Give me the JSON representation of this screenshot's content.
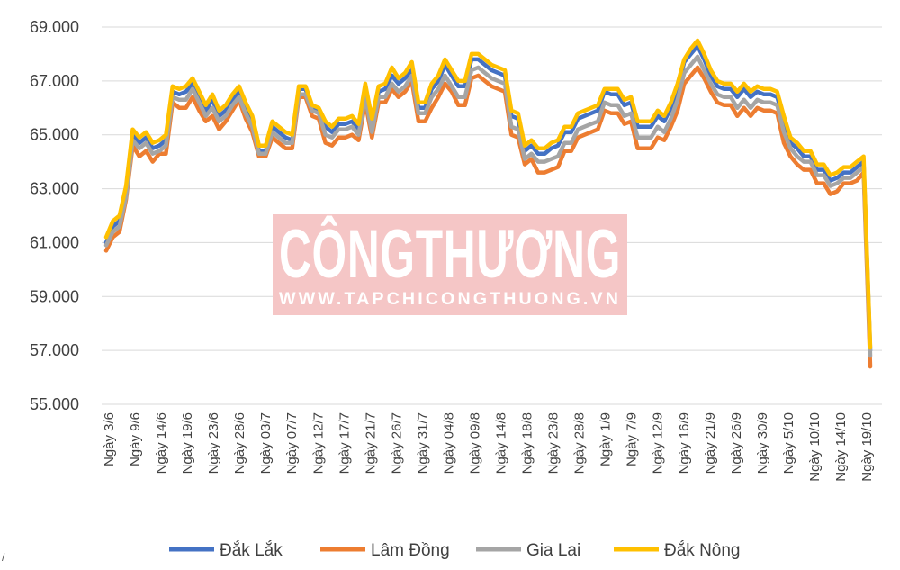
{
  "chart_data": {
    "type": "line",
    "y_ticks": [
      "55.000",
      "57.000",
      "59.000",
      "61.000",
      "63.000",
      "65.000",
      "67.000",
      "69.000"
    ],
    "ylim": [
      55000,
      69000
    ],
    "grid": true,
    "legend_position": "bottom",
    "x_labels": [
      "Ngày 3/6",
      "Ngày 9/6",
      "Ngày 14/6",
      "Ngày 19/6",
      "Ngày 23/6",
      "Ngày 28/6",
      "Ngày 03/7",
      "Ngày 07/7",
      "Ngày 12/7",
      "Ngày 17/7",
      "Ngày 21/7",
      "Ngày 26/7",
      "Ngày 31/7",
      "Ngày 04/8",
      "Ngày 09/8",
      "Ngày 14/8",
      "Ngày 18/8",
      "Ngày 23/8",
      "Ngày 28/8",
      "Ngày 1/9",
      "Ngày 7/9",
      "Ngày 12/9",
      "Ngày 16/9",
      "Ngày 21/9",
      "Ngày 26/9",
      "Ngày 30/9",
      "Ngày 5/10",
      "Ngày 10/10",
      "Ngày 14/10",
      "Ngày 19/10"
    ],
    "series": [
      {
        "name": "Đắk Lắk",
        "color": "#4472C4",
        "values": [
          61000,
          61600,
          61800,
          62900,
          65000,
          64700,
          64900,
          64500,
          64600,
          64800,
          66600,
          66500,
          66600,
          66900,
          66400,
          65900,
          66300,
          65700,
          65900,
          66300,
          66600,
          66000,
          65500,
          64400,
          64400,
          65300,
          65100,
          64900,
          64800,
          66700,
          66700,
          66000,
          65900,
          65300,
          65100,
          65400,
          65400,
          65500,
          65200,
          66700,
          65400,
          66600,
          66700,
          67200,
          66900,
          67100,
          67400,
          66000,
          66000,
          66700,
          67000,
          67600,
          67200,
          66800,
          66800,
          67800,
          67800,
          67600,
          67400,
          67300,
          67200,
          65700,
          65600,
          64400,
          64600,
          64300,
          64300,
          64500,
          64600,
          65100,
          65100,
          65600,
          65700,
          65800,
          65900,
          66600,
          66500,
          66500,
          66100,
          66200,
          65300,
          65300,
          65300,
          65700,
          65500,
          66000,
          66700,
          67700,
          68000,
          68300,
          67800,
          67200,
          66800,
          66700,
          66700,
          66400,
          66700,
          66400,
          66600,
          66500,
          66500,
          66400,
          65500,
          64700,
          64500,
          64200,
          64200,
          63700,
          63700,
          63300,
          63400,
          63600,
          63600,
          63800,
          64000,
          57000
        ]
      },
      {
        "name": "Lâm Đồng",
        "color": "#ED7D31",
        "values": [
          60700,
          61200,
          61400,
          62600,
          64600,
          64200,
          64400,
          64000,
          64300,
          64300,
          66200,
          66000,
          66000,
          66400,
          65900,
          65500,
          65700,
          65200,
          65500,
          65900,
          66300,
          65600,
          65100,
          64200,
          64200,
          64900,
          64700,
          64500,
          64500,
          66400,
          66400,
          65700,
          65600,
          64700,
          64600,
          64900,
          64900,
          65000,
          64800,
          66200,
          64900,
          66200,
          66200,
          66700,
          66400,
          66600,
          67000,
          65500,
          65500,
          66000,
          66400,
          66900,
          66600,
          66100,
          66100,
          67100,
          67200,
          67000,
          66800,
          66700,
          66600,
          65000,
          64900,
          63900,
          64100,
          63600,
          63600,
          63700,
          63800,
          64400,
          64400,
          64900,
          65000,
          65100,
          65200,
          65900,
          65800,
          65800,
          65400,
          65500,
          64500,
          64500,
          64500,
          64900,
          64800,
          65300,
          65900,
          66900,
          67200,
          67500,
          67100,
          66600,
          66200,
          66100,
          66100,
          65700,
          66000,
          65700,
          66000,
          65900,
          65900,
          65800,
          64700,
          64200,
          63900,
          63700,
          63700,
          63200,
          63200,
          62800,
          62900,
          63200,
          63200,
          63300,
          63600,
          56400
        ]
      },
      {
        "name": "Gia Lai",
        "color": "#A5A5A5",
        "values": [
          60900,
          61400,
          61600,
          62700,
          64800,
          64500,
          64700,
          64300,
          64400,
          64600,
          66400,
          66300,
          66300,
          66700,
          66200,
          65700,
          66000,
          65500,
          65700,
          66100,
          66400,
          65800,
          65300,
          64300,
          64300,
          65100,
          64900,
          64700,
          64700,
          66500,
          66500,
          65900,
          65800,
          65000,
          64900,
          65200,
          65200,
          65300,
          65000,
          66400,
          65100,
          66400,
          66400,
          66900,
          66600,
          66800,
          67200,
          65800,
          65800,
          66400,
          66700,
          67200,
          66800,
          66400,
          66400,
          67400,
          67500,
          67300,
          67100,
          67000,
          66900,
          65300,
          65200,
          64100,
          64300,
          64000,
          64000,
          64100,
          64200,
          64700,
          64700,
          65200,
          65300,
          65400,
          65500,
          66200,
          66100,
          66100,
          65700,
          65800,
          64900,
          64900,
          64900,
          65300,
          65100,
          65600,
          66300,
          67300,
          67600,
          67900,
          67400,
          66900,
          66500,
          66400,
          66400,
          66000,
          66300,
          66000,
          66300,
          66200,
          66200,
          66100,
          65100,
          64500,
          64200,
          64000,
          64000,
          63500,
          63500,
          63100,
          63200,
          63400,
          63400,
          63600,
          63800,
          56800
        ]
      },
      {
        "name": "Đắk Nông",
        "color": "#FFC000",
        "values": [
          61200,
          61800,
          62000,
          63100,
          65200,
          64900,
          65100,
          64700,
          64800,
          65000,
          66800,
          66700,
          66800,
          67100,
          66600,
          66100,
          66500,
          65900,
          66100,
          66500,
          66800,
          66200,
          65700,
          64600,
          64600,
          65500,
          65300,
          65100,
          65000,
          66800,
          66800,
          66100,
          66000,
          65500,
          65300,
          65600,
          65600,
          65700,
          65400,
          66900,
          65600,
          66800,
          66900,
          67500,
          67100,
          67300,
          67700,
          66200,
          66200,
          66900,
          67200,
          67800,
          67400,
          67000,
          67000,
          68000,
          68000,
          67800,
          67600,
          67500,
          67400,
          65900,
          65800,
          64600,
          64800,
          64500,
          64500,
          64700,
          64800,
          65300,
          65300,
          65800,
          65900,
          66000,
          66100,
          66700,
          66700,
          66700,
          66300,
          66400,
          65500,
          65500,
          65500,
          65900,
          65700,
          66200,
          66900,
          67800,
          68200,
          68500,
          68000,
          67400,
          67000,
          66900,
          66900,
          66600,
          66900,
          66600,
          66800,
          66700,
          66700,
          66600,
          65700,
          64900,
          64700,
          64400,
          64400,
          63900,
          63900,
          63500,
          63600,
          63800,
          63800,
          64000,
          64200,
          57100
        ]
      }
    ]
  },
  "watermark": {
    "title": "CÔNGTHƯƠNG",
    "subtitle": "WWW.TAPCHICONGTHUONG.VN"
  },
  "corner_mark": "/"
}
